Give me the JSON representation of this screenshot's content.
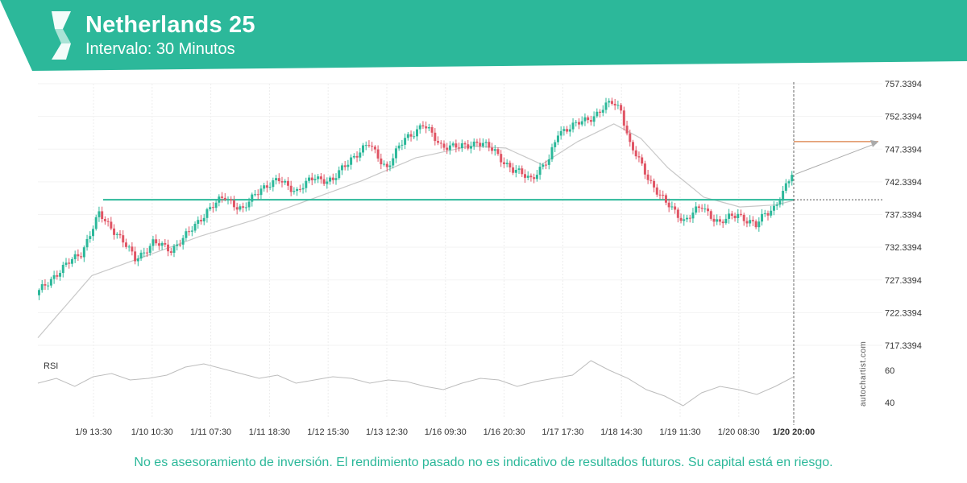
{
  "header": {
    "title": "Netherlands 25",
    "subtitle": "Intervalo: 30 Minutos",
    "background_color": "#2cb89a",
    "logo_icon": "autochartist-logo-icon"
  },
  "disclaimer": "No es asesoramiento de inversión. El rendimiento pasado no es indicativo de resultados futuros. Su capital está en riesgo.",
  "watermark": "autochartist.com",
  "chart_data": {
    "type": "candlestick",
    "instrument": "Netherlands 25",
    "interval": "30 Minutos",
    "y_ticks": [
      "757.3394",
      "752.3394",
      "747.3394",
      "742.3394",
      "737.3394",
      "732.3394",
      "727.3394",
      "722.3394",
      "717.3394"
    ],
    "ylim": [
      717.3394,
      757.3394
    ],
    "x_ticks": [
      "1/9 13:30",
      "1/10 10:30",
      "1/11 07:30",
      "1/11 18:30",
      "1/12 15:30",
      "1/13 12:30",
      "1/16 09:30",
      "1/16 20:30",
      "1/17 17:30",
      "1/18 14:30",
      "1/19 11:30",
      "1/20 08:30",
      "1/20 20:00"
    ],
    "current_time_label": "1/20 20:00",
    "price_path": [
      [
        0,
        725.0
      ],
      [
        2,
        728.0
      ],
      [
        5,
        731.5
      ],
      [
        7,
        737.3
      ],
      [
        9,
        734.5
      ],
      [
        11,
        730.5
      ],
      [
        13,
        733.0
      ],
      [
        15,
        732.0
      ],
      [
        17,
        734.5
      ],
      [
        19,
        738.0
      ],
      [
        21,
        740.0
      ],
      [
        23,
        738.0
      ],
      [
        25,
        741.5
      ],
      [
        27,
        742.5
      ],
      [
        29,
        741.0
      ],
      [
        31,
        743.0
      ],
      [
        33,
        742.5
      ],
      [
        35,
        746.0
      ],
      [
        37,
        748.0
      ],
      [
        39,
        744.5
      ],
      [
        41,
        749.0
      ],
      [
        43,
        751.0
      ],
      [
        45,
        748.0
      ],
      [
        47,
        747.5
      ],
      [
        49,
        748.5
      ],
      [
        51,
        747.0
      ],
      [
        53,
        744.0
      ],
      [
        55,
        743.0
      ],
      [
        57,
        745.5
      ],
      [
        58,
        750.0
      ],
      [
        60,
        751.0
      ],
      [
        62,
        752.5
      ],
      [
        64,
        754.5
      ],
      [
        65,
        753.5
      ],
      [
        66,
        748.0
      ],
      [
        68,
        743.0
      ],
      [
        70,
        739.0
      ],
      [
        72,
        736.5
      ],
      [
        74,
        738.5
      ],
      [
        76,
        736.0
      ],
      [
        78,
        737.5
      ],
      [
        80,
        735.5
      ],
      [
        81,
        737.5
      ],
      [
        82,
        738.5
      ],
      [
        83,
        740.5
      ],
      [
        84,
        743.5
      ]
    ],
    "moving_average": [
      [
        0,
        718.5
      ],
      [
        6,
        728.0
      ],
      [
        12,
        731.0
      ],
      [
        18,
        734.0
      ],
      [
        24,
        736.5
      ],
      [
        30,
        739.5
      ],
      [
        36,
        742.5
      ],
      [
        42,
        746.0
      ],
      [
        48,
        747.8
      ],
      [
        52,
        747.5
      ],
      [
        56,
        745.0
      ],
      [
        60,
        748.5
      ],
      [
        64,
        751.2
      ],
      [
        67,
        749.0
      ],
      [
        70,
        744.5
      ],
      [
        74,
        740.0
      ],
      [
        78,
        738.5
      ],
      [
        82,
        738.8
      ],
      [
        84,
        739.5
      ]
    ],
    "support_level": 739.6,
    "target_level": 748.5,
    "rsi": {
      "label": "RSI",
      "ticks": [
        "60",
        "40"
      ],
      "values": [
        52,
        55,
        50,
        56,
        58,
        54,
        55,
        57,
        62,
        64,
        61,
        58,
        55,
        57,
        52,
        54,
        56,
        55,
        52,
        54,
        53,
        50,
        48,
        52,
        55,
        54,
        50,
        53,
        55,
        57,
        66,
        60,
        55,
        48,
        44,
        38,
        46,
        50,
        48,
        45,
        50,
        56
      ]
    },
    "colors": {
      "up": "#2cb89a",
      "down": "#e05565",
      "moving_average": "#c8c8c8",
      "support": "#2cb89a",
      "target": "#e09060",
      "projection": "#aaaaaa"
    }
  }
}
